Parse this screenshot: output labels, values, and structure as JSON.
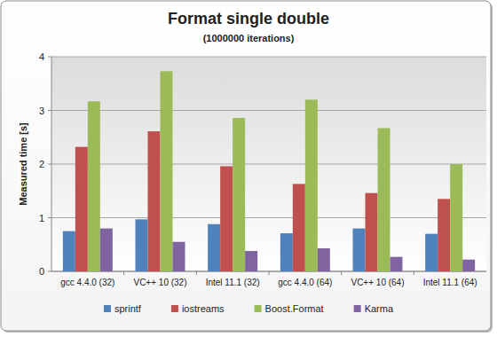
{
  "chart_data": {
    "type": "bar",
    "title": "Format single double",
    "subtitle": "(1000000 iterations)",
    "y_label": "Measured time [s]",
    "categories": [
      "gcc 4.4.0 (32)",
      "VC++ 10 (32)",
      "Intel 11.1 (32)",
      "gcc 4.4.0 (64)",
      "VC++ 10 (64)",
      "Intel 11.1 (64)"
    ],
    "series": [
      {
        "name": "sprintf",
        "color": "#4f81bd",
        "values": [
          0.75,
          0.97,
          0.88,
          0.71,
          0.8,
          0.7
        ]
      },
      {
        "name": "iostreams",
        "color": "#c0504d",
        "values": [
          2.32,
          2.61,
          1.96,
          1.63,
          1.46,
          1.35
        ]
      },
      {
        "name": "Boost.Format",
        "color": "#9bbb59",
        "values": [
          3.17,
          3.73,
          2.86,
          3.2,
          2.67,
          2.0
        ]
      },
      {
        "name": "Karma",
        "color": "#8064a2",
        "values": [
          0.8,
          0.55,
          0.38,
          0.43,
          0.27,
          0.22
        ]
      }
    ],
    "ylim": [
      0,
      4
    ],
    "yticks": [
      0,
      1,
      2,
      3,
      4
    ],
    "grid": true,
    "legend": "bottom"
  }
}
